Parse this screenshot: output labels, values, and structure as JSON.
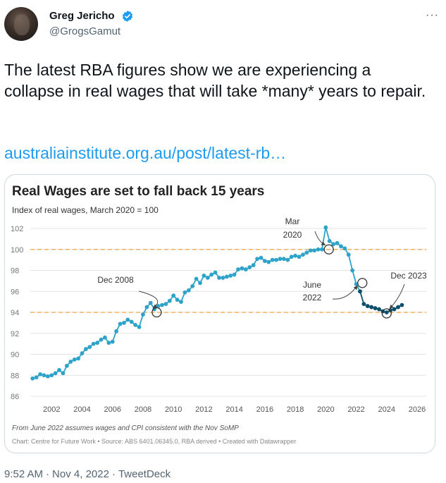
{
  "author": {
    "display_name": "Greg Jericho",
    "handle": "@GrogsGamut",
    "avatar_icon": "user-avatar",
    "verified_icon": "verified-badge-icon"
  },
  "more_menu": "···",
  "tweet": {
    "text": "The latest RBA figures show we are experiencing a collapse in real wages that will take *many* years to repair.",
    "link": "australiainstitute.org.au/post/latest-rb…"
  },
  "meta": {
    "time": "9:52 AM",
    "sep1": "·",
    "date": "Nov 4, 2022",
    "sep2": "·",
    "client": "TweetDeck"
  },
  "colors": {
    "link": "#1d9bf0",
    "line_actual": "#2ea3c9",
    "line_forecast": "#0b4f6c",
    "reference": "#f0b060"
  },
  "chart_data": {
    "type": "line",
    "title": "Real Wages are set to fall back 15 years",
    "subtitle": "Index of real wages, March 2020 = 100",
    "xlim": [
      2000.6,
      2026.6
    ],
    "ylim": [
      86,
      102
    ],
    "y_ticks": [
      86,
      88,
      90,
      92,
      94,
      96,
      98,
      100,
      102
    ],
    "x_ticks": [
      2002,
      2004,
      2006,
      2008,
      2010,
      2012,
      2014,
      2016,
      2018,
      2020,
      2022,
      2024,
      2026
    ],
    "grid": true,
    "reference_lines": [
      100,
      94
    ],
    "series": [
      {
        "x": [
          2000.75,
          2001.0,
          2001.25,
          2001.5,
          2001.75,
          2002.0,
          2002.25,
          2002.5,
          2002.75,
          2003.0,
          2003.25,
          2003.5,
          2003.75,
          2004.0,
          2004.25,
          2004.5,
          2004.75,
          2005.0,
          2005.25,
          2005.5,
          2005.75,
          2006.0,
          2006.25,
          2006.5,
          2006.75,
          2007.0,
          2007.25,
          2007.5,
          2007.75,
          2008.0,
          2008.25,
          2008.5,
          2008.75,
          2009.0,
          2009.25,
          2009.5,
          2009.75,
          2010.0,
          2010.25,
          2010.5,
          2010.75,
          2011.0,
          2011.25,
          2011.5,
          2011.75,
          2012.0,
          2012.25,
          2012.5,
          2012.75,
          2013.0,
          2013.25,
          2013.5,
          2013.75,
          2014.0,
          2014.25,
          2014.5,
          2014.75,
          2015.0,
          2015.25,
          2015.5,
          2015.75,
          2016.0,
          2016.25,
          2016.5,
          2016.75,
          2017.0,
          2017.25,
          2017.5,
          2017.75,
          2018.0,
          2018.25,
          2018.5,
          2018.75,
          2019.0,
          2019.25,
          2019.5,
          2019.75,
          2020.0,
          2020.25,
          2020.5,
          2020.75,
          2021.0,
          2021.25,
          2021.5,
          2021.75,
          2022.0,
          2022.25
        ],
        "y": [
          87.7,
          87.8,
          88.1,
          88.0,
          87.9,
          88.0,
          88.2,
          88.5,
          88.2,
          88.9,
          89.3,
          89.5,
          89.6,
          90.1,
          90.5,
          90.7,
          91.0,
          91.1,
          91.4,
          91.6,
          91.1,
          91.2,
          92.2,
          92.9,
          93.0,
          93.3,
          93.1,
          92.8,
          92.6,
          93.8,
          94.5,
          94.9,
          94.3,
          94.6,
          94.7,
          94.8,
          95.1,
          95.6,
          95.2,
          95.0,
          95.9,
          96.1,
          96.5,
          97.2,
          96.8,
          97.5,
          97.3,
          97.6,
          97.8,
          97.3,
          97.3,
          97.4,
          97.5,
          97.6,
          98.1,
          98.2,
          98.1,
          98.3,
          98.5,
          99.1,
          99.2,
          98.9,
          98.8,
          99.0,
          99.0,
          99.1,
          99.1,
          99.0,
          99.3,
          99.4,
          99.3,
          99.5,
          99.7,
          99.9,
          99.9,
          100.0,
          100.0,
          102.1,
          100.8,
          100.5,
          100.6,
          100.3,
          100.1,
          99.5,
          98.0,
          96.7,
          96.0
        ]
      },
      {
        "x": [
          2022.25,
          2022.5,
          2022.75,
          2023.0,
          2023.25,
          2023.5,
          2023.75,
          2024.0,
          2024.25,
          2024.5,
          2024.75,
          2025.0
        ],
        "y": [
          96.0,
          94.8,
          94.6,
          94.5,
          94.4,
          94.3,
          94.1,
          94.0,
          94.2,
          94.3,
          94.5,
          94.7
        ]
      }
    ],
    "annotations": [
      {
        "text_lines": [
          "Dec 2008"
        ],
        "x": 2008.9,
        "y": 94.0
      },
      {
        "text_lines": [
          "Mar",
          "2020"
        ],
        "x": 2020.2,
        "y": 100.0
      },
      {
        "text_lines": [
          "June",
          "2022"
        ],
        "x": 2022.4,
        "y": 96.8
      },
      {
        "text_lines": [
          "Dec 2023"
        ],
        "x": 2024.0,
        "y": 93.9
      }
    ],
    "notes": "From June 2022 assumes wages and CPI consistent with the Nov SoMP",
    "credit": "Chart: Centre for Future Work • Source: ABS 6401.06345.0, RBA derived • Created with Datawrapper"
  }
}
